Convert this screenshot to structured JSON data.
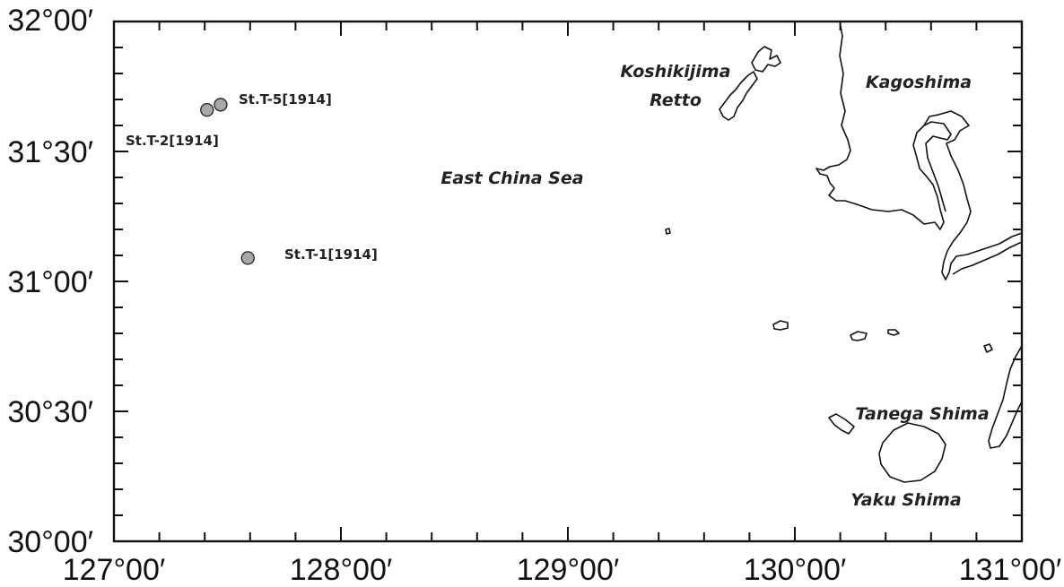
{
  "map": {
    "lon_range": [
      127.0,
      131.0
    ],
    "lat_range": [
      30.0,
      32.0
    ],
    "lon_ticks": [
      {
        "value": 127.0,
        "label": "127°00′"
      },
      {
        "value": 128.0,
        "label": "128°00′"
      },
      {
        "value": 129.0,
        "label": "129°00′"
      },
      {
        "value": 130.0,
        "label": "130°00′"
      },
      {
        "value": 131.0,
        "label": "131°00′"
      }
    ],
    "lat_ticks": [
      {
        "value": 30.0,
        "label": "30°00′"
      },
      {
        "value": 30.5,
        "label": "30°30′"
      },
      {
        "value": 31.0,
        "label": "31°00′"
      },
      {
        "value": 31.5,
        "label": "31°30′"
      },
      {
        "value": 32.0,
        "label": "32°00′"
      }
    ],
    "place_labels": {
      "koshikijima_line1": "Koshikijima",
      "koshikijima_line2": "Retto",
      "kagoshima": "Kagoshima",
      "east_china_sea": "East China Sea",
      "tanega_shima": "Tanega Shima",
      "yaku_shima": "Yaku Shima"
    },
    "stations": [
      {
        "id": "st-t-5",
        "label": "St.T-5[1914]",
        "lon": 127.47,
        "lat": 31.68
      },
      {
        "id": "st-t-2",
        "label": "St.T-2[1914]",
        "lon": 127.41,
        "lat": 31.66
      },
      {
        "id": "st-t-1",
        "label": "St.T-1[1914]",
        "lon": 127.59,
        "lat": 31.09
      }
    ],
    "colors": {
      "station_fill": "#a8a8a8",
      "coastline": "#111111"
    }
  }
}
